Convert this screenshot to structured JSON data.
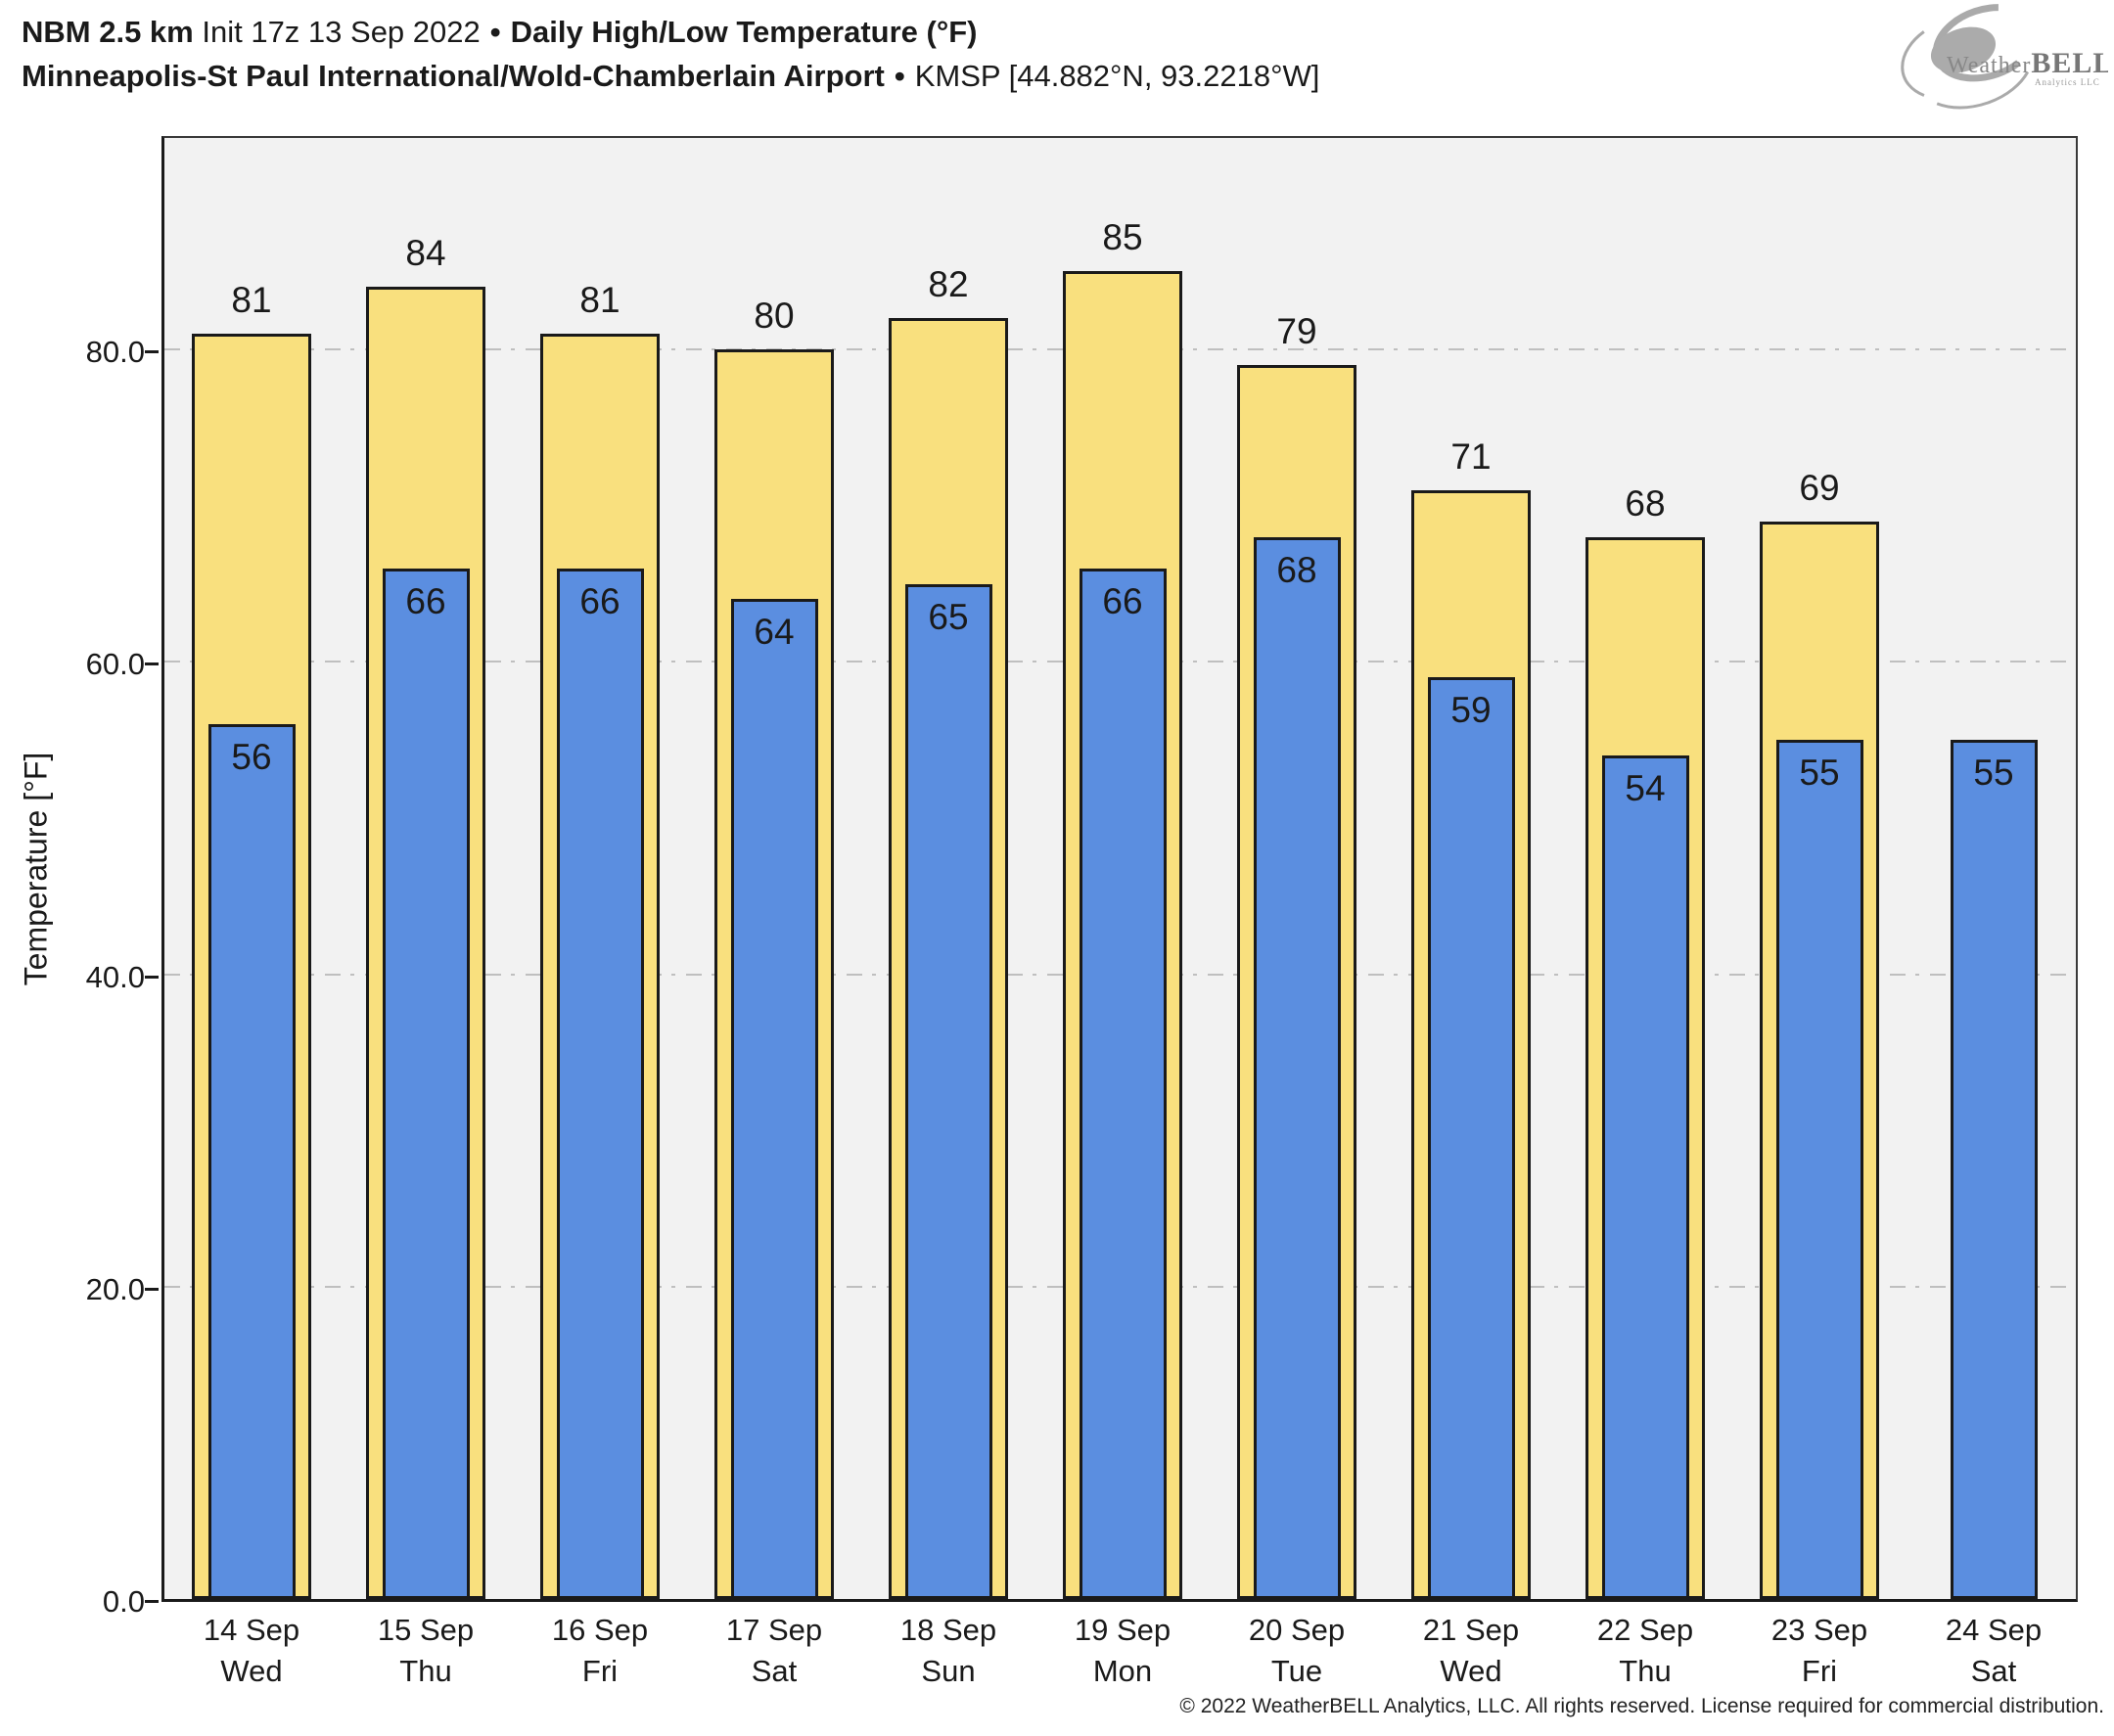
{
  "header": {
    "model": "NBM 2.5 km",
    "init": "Init 17z 13 Sep 2022",
    "sep1": "•",
    "product": "Daily High/Low Temperature (°F)",
    "station": "Minneapolis-St Paul International/Wold-Chamberlain Airport",
    "sep2": "•",
    "station_id": "KMSP [44.882°N, 93.2218°W]"
  },
  "logo": {
    "brand_weather": "Weather",
    "brand_bell": "BELL",
    "brand_sub": "Analytics LLC"
  },
  "footer": {
    "copyright": "© 2022 WeatherBELL Analytics, LLC. All rights reserved. License required for commercial distribution."
  },
  "chart_data": {
    "type": "bar",
    "title": "Daily High/Low Temperature (°F)",
    "xlabel": "",
    "ylabel": "Temperature [°F]",
    "ylim": [
      0,
      93.85
    ],
    "yticks": [
      0,
      20,
      40,
      60,
      80
    ],
    "ytick_labels": [
      "0.0",
      "20.0",
      "40.0",
      "60.0",
      "80.0"
    ],
    "gridlines": [
      20,
      40,
      60,
      80
    ],
    "grid_style": "horizontal dash-dot gray",
    "legend_position": "none",
    "categories": [
      {
        "date": "14 Sep",
        "day": "Wed"
      },
      {
        "date": "15 Sep",
        "day": "Thu"
      },
      {
        "date": "16 Sep",
        "day": "Fri"
      },
      {
        "date": "17 Sep",
        "day": "Sat"
      },
      {
        "date": "18 Sep",
        "day": "Sun"
      },
      {
        "date": "19 Sep",
        "day": "Mon"
      },
      {
        "date": "20 Sep",
        "day": "Tue"
      },
      {
        "date": "21 Sep",
        "day": "Wed"
      },
      {
        "date": "22 Sep",
        "day": "Thu"
      },
      {
        "date": "23 Sep",
        "day": "Fri"
      },
      {
        "date": "24 Sep",
        "day": "Sat"
      }
    ],
    "series": [
      {
        "name": "High",
        "color": "#f9e07e",
        "values": [
          81,
          84,
          81,
          80,
          82,
          85,
          79,
          71,
          68,
          69,
          null
        ]
      },
      {
        "name": "Low",
        "color": "#5b8ee0",
        "values": [
          56,
          66,
          66,
          64,
          65,
          66,
          68,
          59,
          54,
          55,
          55
        ]
      }
    ],
    "colors": {
      "plot_background": "#f2f2f2",
      "bar_outline": "#1a1a1a",
      "gridline": "#bfbfbf",
      "high_fill": "#f9e07e",
      "low_fill": "#5b8ee0"
    }
  }
}
